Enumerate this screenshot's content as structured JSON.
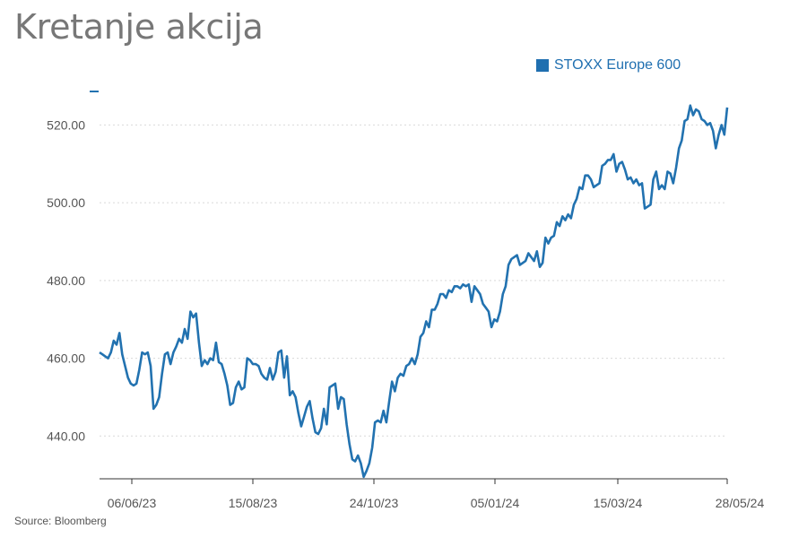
{
  "title": "Kretanje akcija",
  "source": "Source: Bloomberg",
  "colors": {
    "line": "#2272b0",
    "grid": "#d9d9d9",
    "axis": "#333333"
  },
  "chart_data": {
    "type": "line",
    "title": "Kretanje akcija",
    "xlabel": "",
    "ylabel": "",
    "ylim": [
      429,
      530
    ],
    "grid": "horizontal dashed",
    "legend_position": "top-right",
    "y_ticks": [
      "440.00",
      "460.00",
      "480.00",
      "500.00",
      "520.00"
    ],
    "y_tick_values": [
      440,
      460,
      480,
      500,
      520
    ],
    "x_ticks": [
      "06/06/23",
      "15/08/23",
      "24/10/23",
      "05/01/24",
      "15/03/24",
      "28/05/24"
    ],
    "series": [
      {
        "name": "STOXX Europe 600",
        "values": [
          461.5,
          461,
          460.5,
          460,
          461.5,
          464.5,
          463.5,
          466.5,
          461,
          458,
          455,
          453.5,
          453,
          453.5,
          457,
          461.5,
          461,
          461.5,
          458,
          447,
          448,
          450,
          456,
          461,
          461.5,
          458.5,
          461.5,
          463,
          465,
          464,
          467.5,
          465,
          472,
          470.5,
          471.5,
          464,
          458,
          459.5,
          458.5,
          460,
          459.5,
          464,
          459,
          458.5,
          456,
          453,
          448,
          448.5,
          452.5,
          454,
          452,
          452.5,
          460,
          459.5,
          458.5,
          458.5,
          458,
          456,
          455,
          454.5,
          457.5,
          454.5,
          456.5,
          461.5,
          462,
          455,
          460.5,
          450.5,
          451.5,
          450,
          446,
          442.5,
          445,
          447.5,
          449,
          444.5,
          441,
          440.5,
          442,
          447,
          443,
          452.5,
          453,
          453.5,
          447,
          450,
          449.5,
          443,
          438,
          434,
          433.5,
          435,
          433,
          429.5,
          431,
          433,
          437,
          443.5,
          444,
          443.5,
          446.5,
          443.5,
          449,
          454,
          451.5,
          455,
          456,
          455.5,
          458,
          458.5,
          460,
          458.5,
          461,
          465.5,
          466.5,
          469.5,
          468,
          472.5,
          472.5,
          474,
          476.5,
          476.5,
          475.5,
          477.5,
          477,
          478.5,
          478.5,
          478,
          479,
          478.5,
          479,
          474.5,
          478.5,
          477.5,
          476.5,
          474,
          473,
          472,
          468,
          470,
          469.5,
          472,
          476.5,
          478.5,
          484,
          485.5,
          486,
          486.5,
          484,
          484.5,
          485,
          487,
          486,
          485,
          487.5,
          483.5,
          484.5,
          491,
          489.5,
          491,
          491.5,
          495,
          494,
          496.5,
          495.5,
          497,
          496,
          499.5,
          501,
          504,
          503.5,
          507,
          507,
          506,
          504,
          504.5,
          505,
          509.5,
          510,
          511,
          511,
          512.5,
          508,
          510,
          510.5,
          508.5,
          506,
          506.5,
          505,
          506,
          504.5,
          505,
          498.5,
          499,
          499.5,
          506,
          508,
          503.5,
          504.5,
          503.5,
          508,
          507.5,
          505,
          509,
          514,
          516,
          521,
          521.5,
          525,
          522.5,
          524,
          523.5,
          521.5,
          521,
          520,
          520.5,
          518.5,
          514,
          517.5,
          520,
          517.5,
          524.5
        ]
      }
    ]
  }
}
